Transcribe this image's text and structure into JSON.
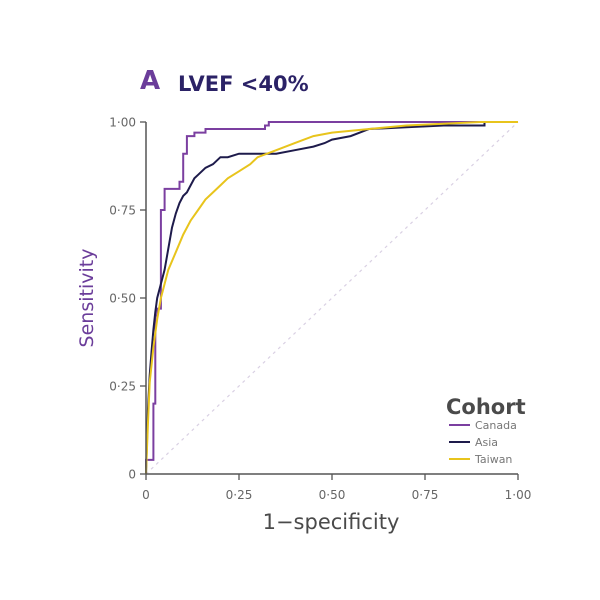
{
  "panel": {
    "letter": "A",
    "title": "LVEF <40%"
  },
  "colors": {
    "panel_letter": "#6b3d9a",
    "title": "#2b2266",
    "ylabel": "#6b3d9a",
    "xlabel": "#4a4a4a",
    "axis": "#555555",
    "tick_text": "#666666",
    "diagonal": "#d9d0e3",
    "legend_title": "#4a4a4a",
    "legend_text": "#777777"
  },
  "chart_data": {
    "type": "line",
    "title": "LVEF <40%",
    "xlabel": "1−specificity",
    "ylabel": "Sensitivity",
    "xlim": [
      0,
      1
    ],
    "ylim": [
      0,
      1
    ],
    "xticks": [
      {
        "value": 0,
        "label": "0"
      },
      {
        "value": 0.25,
        "label": "0·25"
      },
      {
        "value": 0.5,
        "label": "0·50"
      },
      {
        "value": 0.75,
        "label": "0·75"
      },
      {
        "value": 1,
        "label": "1·00"
      }
    ],
    "yticks": [
      {
        "value": 0,
        "label": "0"
      },
      {
        "value": 0.25,
        "label": "0·25"
      },
      {
        "value": 0.5,
        "label": "0·50"
      },
      {
        "value": 0.75,
        "label": "0·75"
      },
      {
        "value": 1,
        "label": "1·00"
      }
    ],
    "grid": false,
    "reference_line": {
      "x": [
        0,
        1
      ],
      "y": [
        0,
        1
      ],
      "style": "dotted"
    },
    "legend": {
      "title": "Cohort",
      "placement": "bottom-right"
    },
    "series": [
      {
        "name": "Canada",
        "color": "#7b3fa0",
        "x": [
          0,
          0,
          0.02,
          0.02,
          0.025,
          0.025,
          0.03,
          0.03,
          0.04,
          0.04,
          0.05,
          0.05,
          0.09,
          0.09,
          0.1,
          0.1,
          0.11,
          0.11,
          0.13,
          0.13,
          0.16,
          0.16,
          0.24,
          0.24,
          0.32,
          0.32,
          0.33,
          0.33,
          1.0
        ],
        "y": [
          0,
          0.04,
          0.04,
          0.2,
          0.2,
          0.45,
          0.45,
          0.47,
          0.47,
          0.75,
          0.75,
          0.81,
          0.81,
          0.83,
          0.83,
          0.91,
          0.91,
          0.96,
          0.96,
          0.97,
          0.97,
          0.98,
          0.98,
          0.98,
          0.98,
          0.99,
          0.99,
          1.0,
          1.0
        ]
      },
      {
        "name": "Asia",
        "color": "#1e1b4b",
        "x": [
          0,
          0.005,
          0.01,
          0.015,
          0.02,
          0.025,
          0.03,
          0.04,
          0.05,
          0.06,
          0.07,
          0.08,
          0.09,
          0.1,
          0.11,
          0.12,
          0.13,
          0.14,
          0.15,
          0.16,
          0.18,
          0.2,
          0.22,
          0.25,
          0.3,
          0.35,
          0.4,
          0.45,
          0.48,
          0.5,
          0.55,
          0.6,
          0.7,
          0.8,
          0.9,
          0.91,
          0.91,
          1.0
        ],
        "y": [
          0,
          0.18,
          0.28,
          0.35,
          0.41,
          0.46,
          0.5,
          0.54,
          0.58,
          0.64,
          0.7,
          0.74,
          0.77,
          0.79,
          0.8,
          0.82,
          0.84,
          0.85,
          0.86,
          0.87,
          0.88,
          0.9,
          0.9,
          0.91,
          0.91,
          0.91,
          0.92,
          0.93,
          0.94,
          0.95,
          0.96,
          0.98,
          0.985,
          0.99,
          0.99,
          0.99,
          1.0,
          1.0
        ]
      },
      {
        "name": "Taiwan",
        "color": "#e8c41c",
        "x": [
          0,
          0.005,
          0.01,
          0.02,
          0.03,
          0.04,
          0.05,
          0.06,
          0.08,
          0.1,
          0.12,
          0.14,
          0.16,
          0.18,
          0.2,
          0.22,
          0.25,
          0.28,
          0.3,
          0.35,
          0.4,
          0.45,
          0.5,
          0.6,
          0.7,
          0.8,
          0.9,
          1.0
        ],
        "y": [
          0,
          0.14,
          0.26,
          0.36,
          0.44,
          0.5,
          0.54,
          0.58,
          0.63,
          0.68,
          0.72,
          0.75,
          0.78,
          0.8,
          0.82,
          0.84,
          0.86,
          0.88,
          0.9,
          0.92,
          0.94,
          0.96,
          0.97,
          0.98,
          0.99,
          0.995,
          1.0,
          1.0
        ]
      }
    ]
  }
}
